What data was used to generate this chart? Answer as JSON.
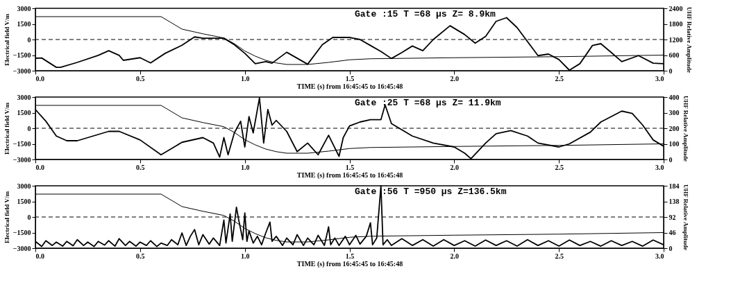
{
  "chart_data": [
    {
      "type": "line",
      "xlabel": "TIME (s) from 16:45:45 to 16:45:48",
      "ylabel": "Electrical field V/m",
      "y2label": "UHF Relative Amplitude",
      "annotations": [
        "Gate :15   T =68 µs   Z=   8.9km"
      ],
      "xlim": [
        0,
        3
      ],
      "xticks": [
        {
          "value": 0,
          "label": "0.0"
        },
        0.5,
        {
          "value": 1,
          "label": "1.0"
        },
        1.5,
        {
          "value": 2,
          "label": "2.0"
        },
        2.5,
        {
          "value": 3,
          "label": "3.0"
        }
      ],
      "ylim": [
        -3000,
        3000
      ],
      "yticks": [
        -3000,
        -1500,
        0,
        1500,
        3000
      ],
      "y2lim": [
        0,
        2400
      ],
      "y2ticks": [
        0,
        600,
        1200,
        1800,
        2400
      ],
      "grid": false,
      "ref_lines": [
        {
          "axis": "y",
          "value": 0,
          "line_style": "dashed"
        }
      ],
      "series": [
        {
          "color": "#000000",
          "x": [
            0,
            0.6,
            0.7,
            0.8,
            0.9,
            0.95,
            1.0,
            1.05,
            1.1,
            1.15,
            1.2,
            1.3,
            1.4,
            1.5,
            1.6,
            1.8,
            2.0,
            2.5,
            3.0
          ],
          "values": [
            2200,
            2200,
            1000,
            550,
            150,
            -400,
            -1100,
            -1600,
            -2000,
            -2250,
            -2400,
            -2400,
            -2200,
            -1950,
            -1850,
            -1800,
            -1750,
            -1650,
            -1500
          ]
        },
        {
          "color": "#000000",
          "axis": "y2",
          "x": [
            0,
            0.03,
            0.1,
            0.12,
            0.2,
            0.3,
            0.35,
            0.4,
            0.42,
            0.5,
            0.55,
            0.62,
            0.7,
            0.76,
            0.8,
            0.9,
            0.95,
            1.0,
            1.05,
            1.1,
            1.13,
            1.2,
            1.3,
            1.37,
            1.42,
            1.5,
            1.55,
            1.6,
            1.65,
            1.7,
            1.75,
            1.8,
            1.85,
            1.9,
            1.98,
            2.05,
            2.1,
            2.15,
            2.2,
            2.25,
            2.3,
            2.4,
            2.45,
            2.5,
            2.55,
            2.6,
            2.66,
            2.7,
            2.75,
            2.8,
            2.88,
            2.95,
            3.0
          ],
          "values": [
            480,
            490,
            130,
            130,
            320,
            590,
            770,
            590,
            400,
            500,
            300,
            670,
            980,
            1300,
            1250,
            1250,
            1000,
            670,
            270,
            350,
            290,
            710,
            250,
            1000,
            1280,
            1280,
            1200,
            970,
            740,
            470,
            700,
            950,
            770,
            1200,
            1730,
            1390,
            1060,
            1320,
            1900,
            2040,
            1660,
            580,
            640,
            430,
            20,
            270,
            970,
            1040,
            700,
            350,
            580,
            290,
            270
          ]
        }
      ]
    },
    {
      "type": "line",
      "xlabel": "TIME (s) from 16:45:45 to 16:45:48",
      "ylabel": "Electrical field V/m",
      "y2label": "UHF Relative Amplitude",
      "annotations": [
        "Gate :25   T =68 µs   Z=  11.9km"
      ],
      "xlim": [
        0,
        3
      ],
      "xticks": [
        {
          "value": 0,
          "label": "0.0"
        },
        0.5,
        {
          "value": 1,
          "label": "1.0"
        },
        1.5,
        {
          "value": 2,
          "label": "2.0"
        },
        2.5,
        {
          "value": 3,
          "label": "3.0"
        }
      ],
      "ylim": [
        -3000,
        3000
      ],
      "yticks": [
        -3000,
        -1500,
        0,
        1500,
        3000
      ],
      "y2lim": [
        0,
        400
      ],
      "y2ticks": [
        0,
        100,
        200,
        300,
        400
      ],
      "grid": false,
      "ref_lines": [
        {
          "axis": "y",
          "value": 0,
          "line_style": "dashed"
        }
      ],
      "series": [
        {
          "color": "#000000",
          "x": [
            0,
            0.6,
            0.7,
            0.8,
            0.9,
            0.95,
            1.0,
            1.05,
            1.1,
            1.15,
            1.2,
            1.3,
            1.4,
            1.5,
            1.6,
            1.8,
            2.0,
            2.5,
            3.0
          ],
          "values": [
            2200,
            2200,
            1000,
            550,
            150,
            -400,
            -1100,
            -1600,
            -2000,
            -2250,
            -2400,
            -2400,
            -2200,
            -1950,
            -1850,
            -1800,
            -1750,
            -1650,
            -1500
          ]
        },
        {
          "color": "#000000",
          "axis": "y2",
          "x": [
            0,
            0.05,
            0.1,
            0.15,
            0.2,
            0.3,
            0.35,
            0.4,
            0.5,
            0.6,
            0.7,
            0.8,
            0.85,
            0.88,
            0.9,
            0.92,
            0.95,
            0.98,
            1.0,
            1.02,
            1.04,
            1.07,
            1.09,
            1.11,
            1.13,
            1.15,
            1.2,
            1.25,
            1.3,
            1.35,
            1.4,
            1.45,
            1.47,
            1.5,
            1.55,
            1.6,
            1.65,
            1.67,
            1.7,
            1.8,
            1.9,
            2.0,
            2.05,
            2.08,
            2.15,
            2.2,
            2.27,
            2.35,
            2.4,
            2.5,
            2.55,
            2.65,
            2.7,
            2.8,
            2.85,
            2.9,
            2.95,
            3.0
          ],
          "values": [
            320,
            245,
            150,
            120,
            120,
            160,
            180,
            180,
            125,
            30,
            110,
            140,
            105,
            15,
            140,
            30,
            170,
            245,
            80,
            275,
            170,
            395,
            105,
            320,
            220,
            250,
            180,
            50,
            105,
            30,
            155,
            20,
            140,
            215,
            240,
            255,
            255,
            350,
            230,
            150,
            105,
            80,
            40,
            5,
            105,
            165,
            185,
            150,
            105,
            80,
            100,
            175,
            240,
            310,
            295,
            220,
            125,
            85
          ]
        }
      ]
    },
    {
      "type": "line",
      "xlabel": "TIME (s) from 16:45:45 to 16:45:48",
      "ylabel": "Electrical field V/m",
      "y2label": "UHF Relative Amplitude",
      "annotations": [
        "Gate :56   T =950 µs   Z=136.5km"
      ],
      "xlim": [
        0,
        3
      ],
      "xticks": [
        {
          "value": 0,
          "label": "0.0"
        },
        0.5,
        {
          "value": 1,
          "label": "1.0"
        },
        1.5,
        {
          "value": 2,
          "label": "2.0"
        },
        2.5,
        {
          "value": 3,
          "label": "3.0"
        }
      ],
      "ylim": [
        -3000,
        3000
      ],
      "yticks": [
        -3000,
        -1500,
        0,
        1500,
        3000
      ],
      "y2lim": [
        0,
        184
      ],
      "y2ticks": [
        0,
        46,
        92,
        138,
        184
      ],
      "grid": false,
      "ref_lines": [
        {
          "axis": "y",
          "value": 0,
          "line_style": "dashed"
        }
      ],
      "series": [
        {
          "color": "#000000",
          "x": [
            0,
            0.6,
            0.7,
            0.8,
            0.9,
            0.95,
            1.0,
            1.05,
            1.1,
            1.15,
            1.2,
            1.3,
            1.4,
            1.5,
            1.6,
            1.8,
            2.0,
            2.5,
            3.0
          ],
          "values": [
            2200,
            2200,
            1000,
            550,
            150,
            -400,
            -1100,
            -1600,
            -2000,
            -2250,
            -2400,
            -2400,
            -2200,
            -1950,
            -1850,
            -1800,
            -1750,
            -1650,
            -1500
          ]
        },
        {
          "color": "#000000",
          "axis": "y2",
          "x": [
            0,
            0.03,
            0.05,
            0.08,
            0.1,
            0.13,
            0.15,
            0.18,
            0.2,
            0.23,
            0.25,
            0.28,
            0.3,
            0.33,
            0.35,
            0.38,
            0.4,
            0.43,
            0.45,
            0.48,
            0.5,
            0.53,
            0.55,
            0.58,
            0.6,
            0.63,
            0.65,
            0.68,
            0.7,
            0.72,
            0.74,
            0.76,
            0.78,
            0.8,
            0.83,
            0.85,
            0.88,
            0.9,
            0.91,
            0.93,
            0.94,
            0.96,
            0.97,
            0.99,
            1.0,
            1.01,
            1.02,
            1.04,
            1.06,
            1.08,
            1.1,
            1.12,
            1.13,
            1.15,
            1.18,
            1.2,
            1.23,
            1.25,
            1.28,
            1.3,
            1.33,
            1.35,
            1.38,
            1.4,
            1.41,
            1.43,
            1.45,
            1.48,
            1.5,
            1.53,
            1.55,
            1.58,
            1.6,
            1.61,
            1.63,
            1.65,
            1.66,
            1.68,
            1.7,
            1.75,
            1.8,
            1.85,
            1.9,
            1.95,
            2.0,
            2.05,
            2.1,
            2.15,
            2.2,
            2.25,
            2.3,
            2.35,
            2.4,
            2.45,
            2.5,
            2.55,
            2.6,
            2.65,
            2.7,
            2.75,
            2.8,
            2.85,
            2.9,
            2.95,
            3.0
          ],
          "values": [
            20,
            5,
            22,
            8,
            18,
            6,
            20,
            7,
            25,
            8,
            18,
            5,
            20,
            9,
            22,
            6,
            28,
            8,
            20,
            6,
            18,
            8,
            22,
            5,
            15,
            8,
            25,
            10,
            45,
            8,
            35,
            55,
            10,
            40,
            12,
            30,
            8,
            83,
            15,
            101,
            20,
            121,
            86,
            25,
            104,
            20,
            51,
            15,
            35,
            10,
            45,
            77,
            20,
            35,
            8,
            30,
            10,
            40,
            8,
            30,
            10,
            38,
            8,
            63,
            10,
            30,
            8,
            35,
            10,
            38,
            12,
            35,
            75,
            10,
            30,
            184,
            10,
            25,
            8,
            28,
            8,
            25,
            6,
            25,
            8,
            22,
            6,
            24,
            8,
            22,
            6,
            25,
            8,
            22,
            6,
            24,
            8,
            20,
            6,
            22,
            8,
            20,
            6,
            24,
            10
          ]
        }
      ]
    }
  ]
}
